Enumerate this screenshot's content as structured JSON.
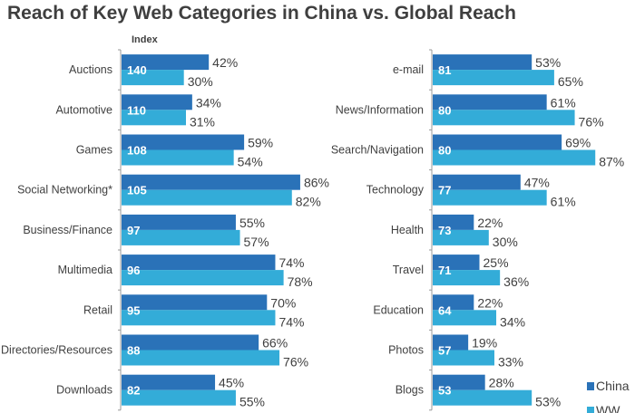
{
  "chart_data": {
    "type": "bar",
    "title": "Reach of Key Web Categories in China vs. Global Reach",
    "index_label": "Index",
    "colors": {
      "China": "#2a72b8",
      "WW": "#33acd8"
    },
    "legend": {
      "placement": "bottom-right",
      "entries": [
        "China",
        "WW"
      ]
    },
    "panels": [
      {
        "categories": [
          "Auctions",
          "Automotive",
          "Games",
          "Social Networking*",
          "Business/Finance",
          "Multimedia",
          "Retail",
          "Directories/Resources",
          "Downloads"
        ],
        "index": [
          140,
          110,
          108,
          105,
          97,
          96,
          95,
          88,
          82
        ],
        "series": [
          {
            "name": "China",
            "values": [
              42,
              34,
              59,
              86,
              55,
              74,
              70,
              66,
              45
            ]
          },
          {
            "name": "WW",
            "values": [
              30,
              31,
              54,
              82,
              57,
              78,
              74,
              76,
              55
            ]
          }
        ]
      },
      {
        "categories": [
          "e-mail",
          "News/Information",
          "Search/Navigation",
          "Technology",
          "Health",
          "Travel",
          "Education",
          "Photos",
          "Blogs"
        ],
        "index": [
          81,
          80,
          80,
          77,
          73,
          71,
          64,
          57,
          53
        ],
        "series": [
          {
            "name": "China",
            "values": [
              53,
              61,
              69,
              47,
              22,
              25,
              22,
              19,
              28
            ]
          },
          {
            "name": "WW",
            "values": [
              65,
              76,
              87,
              61,
              30,
              36,
              34,
              33,
              53
            ]
          }
        ]
      }
    ]
  }
}
